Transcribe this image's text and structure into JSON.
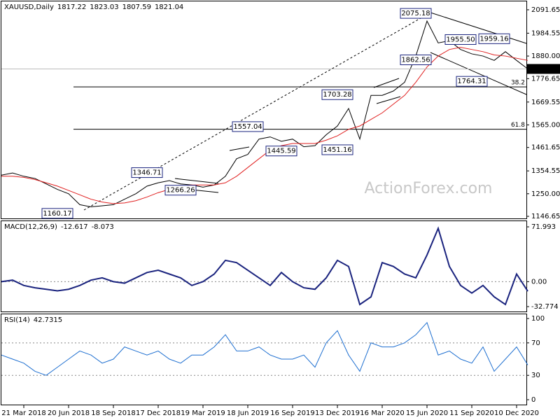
{
  "chart_data": [
    {
      "type": "line",
      "title": "XAUUSD,Daily",
      "header_values": [
        1817.22,
        1823.03,
        1807.59,
        1821.04
      ],
      "ylim": [
        1134,
        2130
      ],
      "yticks": [
        {
          "value": 2091.65,
          "label": "2091.65"
        },
        {
          "value": 1984.55,
          "label": "1984.55"
        },
        {
          "value": 1880,
          "label": "1880.00"
        },
        {
          "value": 1776.65,
          "label": "1776.65"
        },
        {
          "value": 1669.55,
          "label": "1669.55"
        },
        {
          "value": 1565,
          "label": "1565.00"
        },
        {
          "value": 1461.65,
          "label": "1461.65"
        },
        {
          "value": 1354.55,
          "label": "1354.55"
        },
        {
          "value": 1250,
          "label": "1250.00"
        },
        {
          "value": 1146.65,
          "label": "1146.65"
        }
      ],
      "series": [
        {
          "color": "#000000",
          "values": [
            1335,
            1345,
            1330,
            1320,
            1295,
            1270,
            1250,
            1200,
            1190,
            1195,
            1200,
            1225,
            1250,
            1285,
            1300,
            1310,
            1295,
            1290,
            1280,
            1290,
            1330,
            1410,
            1430,
            1500,
            1510,
            1490,
            1500,
            1465,
            1470,
            1520,
            1560,
            1640,
            1500,
            1700,
            1700,
            1720,
            1760,
            1880,
            2040,
            1940,
            1950,
            1910,
            1890,
            1880,
            1860,
            1900,
            1860,
            1821.04
          ]
        },
        {
          "color": "#e02020",
          "values": [
            1330,
            1330,
            1325,
            1315,
            1300,
            1285,
            1265,
            1245,
            1225,
            1212,
            1205,
            1208,
            1218,
            1235,
            1255,
            1270,
            1285,
            1290,
            1290,
            1290,
            1300,
            1330,
            1370,
            1410,
            1450,
            1470,
            1480,
            1480,
            1480,
            1495,
            1515,
            1545,
            1560,
            1590,
            1620,
            1660,
            1700,
            1760,
            1830,
            1880,
            1910,
            1920,
            1910,
            1900,
            1885,
            1880,
            1870,
            1860
          ]
        }
      ],
      "fibo_levels": [
        {
          "value": 1739,
          "label": "38.2"
        },
        {
          "value": 1545,
          "label": "61.8"
        }
      ],
      "annotations": [
        {
          "value": 1160.17,
          "label": "1160.17",
          "x": 5
        },
        {
          "value": 1346.71,
          "label": "1346.71",
          "x": 13
        },
        {
          "value": 1266.26,
          "label": "1266.26",
          "x": 16
        },
        {
          "value": 1557.04,
          "label": "1557.04",
          "x": 22
        },
        {
          "value": 1445.59,
          "label": "1445.59",
          "x": 25
        },
        {
          "value": 1451.16,
          "label": "1451.16",
          "x": 30
        },
        {
          "value": 1703.28,
          "label": "1703.28",
          "x": 30
        },
        {
          "value": 2075.18,
          "label": "2075.18",
          "x": 37
        },
        {
          "value": 1862.56,
          "label": "1862.56",
          "x": 37
        },
        {
          "value": 1955.5,
          "label": "1955.50",
          "x": 41
        },
        {
          "value": 1959.16,
          "label": "1959.16",
          "x": 44
        },
        {
          "value": 1764.31,
          "label": "1764.31",
          "x": 42
        }
      ],
      "watermark": "ActionForex.com"
    },
    {
      "type": "line",
      "title": "MACD(12,26,9)",
      "header_values": [
        -12.617,
        -8.073
      ],
      "ylim": [
        -40.1,
        79.4
      ],
      "yticks": [
        71.993,
        {
          "value": 0,
          "label": "0.00"
        },
        -32.774
      ],
      "levels": [
        0
      ],
      "series": [
        {
          "color": "#1a237e",
          "values": [
            0,
            2,
            -5,
            -8,
            -10,
            -12,
            -10,
            -5,
            2,
            5,
            0,
            -2,
            5,
            12,
            15,
            10,
            5,
            -5,
            0,
            10,
            28,
            25,
            15,
            5,
            -5,
            12,
            0,
            -8,
            -10,
            5,
            28,
            20,
            -30,
            -20,
            25,
            20,
            10,
            5,
            35,
            70,
            20,
            -5,
            -15,
            -5,
            -20,
            -30,
            10,
            -12.617
          ]
        }
      ]
    },
    {
      "type": "line",
      "title": "RSI(14)",
      "header_values": [
        42.7315
      ],
      "ylim": [
        -6.9,
        105.2
      ],
      "yticks": [
        100,
        70,
        30,
        0
      ],
      "levels": [
        70,
        30
      ],
      "categories": [
        null,
        null,
        "21 Mar 2018",
        null,
        null,
        null,
        "20 Jun 2018",
        null,
        null,
        null,
        "18 Sep 2018",
        null,
        null,
        null,
        "17 Dec 2018",
        null,
        null,
        null,
        "19 Mar 2019",
        null,
        null,
        null,
        "18 Jun 2019",
        null,
        null,
        null,
        "16 Sep 2019",
        null,
        null,
        null,
        "13 Dec 2019",
        null,
        null,
        null,
        "16 Mar 2020",
        null,
        null,
        null,
        "15 Jun 2020",
        null,
        null,
        null,
        "11 Sep 2020",
        null,
        null,
        null,
        "10 Dec 2020",
        null
      ],
      "series": [
        {
          "color": "#1e6fd0",
          "values": [
            55,
            50,
            45,
            35,
            30,
            40,
            50,
            60,
            55,
            45,
            50,
            65,
            60,
            55,
            60,
            50,
            45,
            55,
            55,
            65,
            80,
            60,
            60,
            65,
            55,
            50,
            50,
            55,
            40,
            70,
            85,
            55,
            35,
            70,
            65,
            65,
            70,
            80,
            95,
            55,
            60,
            50,
            45,
            65,
            35,
            50,
            65,
            42.7315
          ]
        }
      ]
    }
  ]
}
